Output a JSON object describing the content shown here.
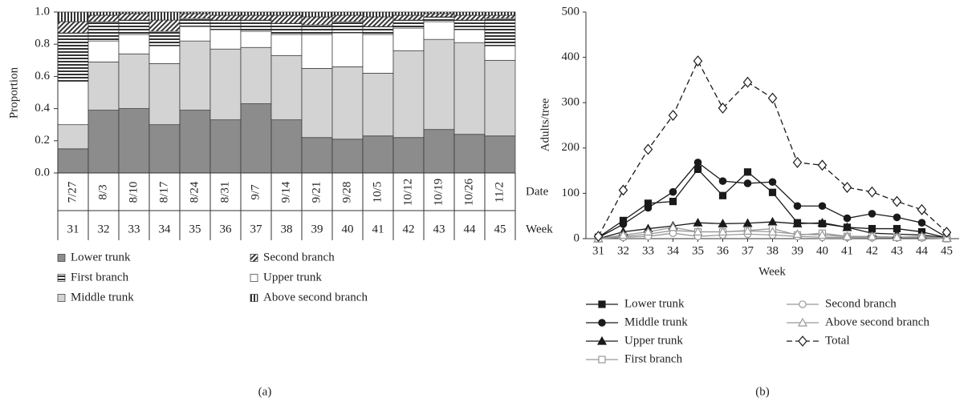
{
  "chart_data": [
    {
      "type": "stacked_bar",
      "panel_label": "(a)",
      "y_label": "Proportion",
      "date_label": "Date",
      "week_label": "Week",
      "categories": [
        "7/27",
        "8/3",
        "8/10",
        "8/17",
        "8/24",
        "8/31",
        "9/7",
        "9/14",
        "9/21",
        "9/28",
        "10/5",
        "10/12",
        "10/19",
        "10/26",
        "11/2"
      ],
      "weeks": [
        31,
        32,
        33,
        34,
        35,
        36,
        37,
        38,
        39,
        40,
        41,
        42,
        43,
        44,
        45
      ],
      "ylim": [
        0,
        1
      ],
      "yticks": [
        {
          "value": 0,
          "label": "0.0"
        },
        {
          "value": 0.2,
          "label": "0.2"
        },
        {
          "value": 0.4,
          "label": "0.4"
        },
        {
          "value": 0.6,
          "label": "0.6"
        },
        {
          "value": 0.8,
          "label": "0.8"
        },
        {
          "value": 1,
          "label": "1.0"
        }
      ],
      "series": [
        {
          "name": "Lower trunk",
          "color": "#8c8c8c",
          "values": [
            0.15,
            0.39,
            0.4,
            0.3,
            0.39,
            0.33,
            0.43,
            0.33,
            0.22,
            0.21,
            0.23,
            0.22,
            0.27,
            0.24,
            0.23
          ]
        },
        {
          "name": "Middle trunk",
          "color": "#d3d3d3",
          "values": [
            0.15,
            0.3,
            0.34,
            0.38,
            0.43,
            0.44,
            0.35,
            0.4,
            0.43,
            0.45,
            0.39,
            0.54,
            0.56,
            0.57,
            0.47
          ]
        },
        {
          "name": "Upper trunk",
          "color": "#ffffff",
          "values": [
            0.27,
            0.13,
            0.12,
            0.11,
            0.09,
            0.12,
            0.1,
            0.13,
            0.21,
            0.21,
            0.24,
            0.14,
            0.11,
            0.08,
            0.09
          ]
        },
        {
          "name": "First branch",
          "color": "#333333",
          "pattern": "horizontal",
          "values": [
            0.3,
            0.12,
            0.09,
            0.09,
            0.05,
            0.06,
            0.07,
            0.07,
            0.06,
            0.07,
            0.05,
            0.05,
            0.03,
            0.06,
            0.17
          ]
        },
        {
          "name": "Second branch",
          "color": "#333333",
          "pattern": "diagonal",
          "values": [
            0.07,
            0.04,
            0.04,
            0.07,
            0.03,
            0.03,
            0.03,
            0.05,
            0.05,
            0.04,
            0.06,
            0.03,
            0.02,
            0.03,
            0.02
          ]
        },
        {
          "name": "Above second branch",
          "color": "#333333",
          "pattern": "vertical",
          "values": [
            0.06,
            0.02,
            0.01,
            0.05,
            0.01,
            0.02,
            0.02,
            0.02,
            0.03,
            0.02,
            0.03,
            0.02,
            0.01,
            0.02,
            0.02
          ]
        }
      ]
    },
    {
      "type": "line",
      "panel_label": "(b)",
      "y_label": "Adults/tree",
      "x_label": "Week",
      "x": [
        31,
        32,
        33,
        34,
        35,
        36,
        37,
        38,
        39,
        40,
        41,
        42,
        43,
        44,
        45
      ],
      "xlim": [
        30.5,
        45.5
      ],
      "xticks": [
        31,
        32,
        33,
        34,
        35,
        36,
        37,
        38,
        39,
        40,
        41,
        42,
        43,
        44,
        45
      ],
      "ylim": [
        0,
        500
      ],
      "yticks": [
        0,
        100,
        200,
        300,
        400,
        500
      ],
      "series": [
        {
          "name": "Lower trunk",
          "color": "#1a1a1a",
          "marker": "square",
          "filled": true,
          "values": [
            3,
            40,
            78,
            82,
            153,
            95,
            147,
            102,
            35,
            33,
            25,
            22,
            22,
            15,
            2
          ]
        },
        {
          "name": "Middle trunk",
          "color": "#1a1a1a",
          "marker": "circle",
          "filled": true,
          "values": [
            2,
            32,
            68,
            103,
            168,
            127,
            122,
            125,
            72,
            72,
            45,
            55,
            47,
            35,
            3
          ]
        },
        {
          "name": "Upper trunk",
          "color": "#1a1a1a",
          "marker": "triangle",
          "filled": true,
          "values": [
            0,
            15,
            22,
            28,
            35,
            33,
            34,
            37,
            33,
            35,
            25,
            12,
            10,
            8,
            2
          ]
        },
        {
          "name": "First branch",
          "color": "#999999",
          "marker": "square",
          "filled": false,
          "values": [
            0,
            5,
            10,
            18,
            15,
            15,
            18,
            22,
            8,
            12,
            5,
            5,
            3,
            3,
            0
          ]
        },
        {
          "name": "Second branch",
          "color": "#999999",
          "marker": "circle",
          "filled": false,
          "values": [
            0,
            3,
            5,
            12,
            5,
            8,
            10,
            8,
            5,
            3,
            3,
            2,
            2,
            2,
            0
          ]
        },
        {
          "name": "Above second branch",
          "color": "#999999",
          "marker": "triangle",
          "filled": false,
          "values": [
            0,
            8,
            15,
            25,
            15,
            15,
            17,
            15,
            10,
            8,
            5,
            5,
            3,
            5,
            1
          ]
        },
        {
          "name": "Total",
          "color": "#1a1a1a",
          "marker": "diamond",
          "filled": false,
          "dashed": true,
          "values": [
            5,
            107,
            197,
            272,
            392,
            288,
            345,
            310,
            168,
            162,
            113,
            103,
            82,
            64,
            14
          ]
        }
      ]
    }
  ]
}
